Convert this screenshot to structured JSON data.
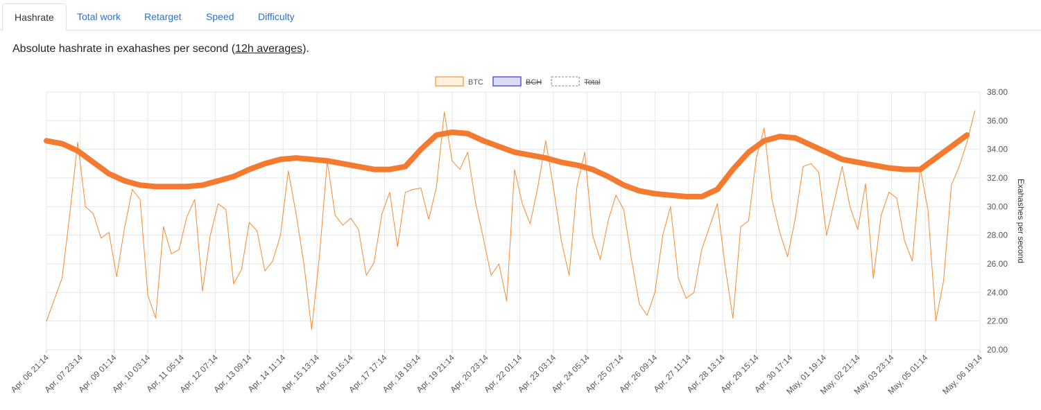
{
  "tabs": [
    "Hashrate",
    "Total work",
    "Retarget",
    "Speed",
    "Difficulty"
  ],
  "active_tab": 0,
  "description": {
    "before": "Absolute hashrate in exahashes per second (",
    "link": "12h averages",
    "after": ")."
  },
  "chart_data": {
    "type": "line",
    "y_label": "Exahashes per second",
    "legend": [
      {
        "name": "BTC",
        "color": "#f7a35c",
        "fill": "#fff1e0",
        "hidden": false,
        "dashed": false
      },
      {
        "name": "BCH",
        "color": "#5555dd",
        "fill": "#dcdcf8",
        "hidden": true,
        "dashed": false
      },
      {
        "name": "Total",
        "color": "#aaaaaa",
        "fill": "#ffffff",
        "hidden": true,
        "dashed": true
      }
    ],
    "xlim": [
      0,
      718
    ],
    "xticks": [
      {
        "value": 0,
        "label": "Apr, 06 21:14"
      },
      {
        "value": 26,
        "label": "Apr, 07 23:14"
      },
      {
        "value": 52,
        "label": "Apr, 09 01:14"
      },
      {
        "value": 78,
        "label": "Apr, 10 03:14"
      },
      {
        "value": 104,
        "label": "Apr, 11 05:14"
      },
      {
        "value": 130,
        "label": "Apr, 12 07:14"
      },
      {
        "value": 156,
        "label": "Apr, 13 09:14"
      },
      {
        "value": 182,
        "label": "Apr, 14 11:14"
      },
      {
        "value": 208,
        "label": "Apr, 15 13:14"
      },
      {
        "value": 234,
        "label": "Apr, 16 15:14"
      },
      {
        "value": 260,
        "label": "Apr, 17 17:14"
      },
      {
        "value": 286,
        "label": "Apr, 18 19:14"
      },
      {
        "value": 312,
        "label": "Apr, 19 21:14"
      },
      {
        "value": 338,
        "label": "Apr, 20 23:14"
      },
      {
        "value": 364,
        "label": "Apr, 22 01:14"
      },
      {
        "value": 390,
        "label": "Apr, 23 03:14"
      },
      {
        "value": 416,
        "label": "Apr, 24 05:14"
      },
      {
        "value": 442,
        "label": "Apr, 25 07:14"
      },
      {
        "value": 468,
        "label": "Apr, 26 09:14"
      },
      {
        "value": 494,
        "label": "Apr, 27 11:14"
      },
      {
        "value": 520,
        "label": "Apr, 28 13:14"
      },
      {
        "value": 546,
        "label": "Apr, 29 15:14"
      },
      {
        "value": 572,
        "label": "Apr, 30 17:14"
      },
      {
        "value": 598,
        "label": "May, 01 19:14"
      },
      {
        "value": 624,
        "label": "May, 02 21:14"
      },
      {
        "value": 650,
        "label": "May, 03 23:14"
      },
      {
        "value": 676,
        "label": "May, 05 01:14"
      },
      {
        "value": 718,
        "label": "May, 06 19:14"
      }
    ],
    "ylim": [
      20,
      38
    ],
    "yticks": [
      {
        "value": 20,
        "label": "20.00"
      },
      {
        "value": 22,
        "label": "22.00"
      },
      {
        "value": 24,
        "label": "24.00"
      },
      {
        "value": 26,
        "label": "26.00"
      },
      {
        "value": 28,
        "label": "28.00"
      },
      {
        "value": 30,
        "label": "30.00"
      },
      {
        "value": 32,
        "label": "32.00"
      },
      {
        "value": 34,
        "label": "34.00"
      },
      {
        "value": 36,
        "label": "36.00"
      },
      {
        "value": 38,
        "label": "38.00"
      }
    ],
    "grid": true,
    "series": [
      {
        "name": "BTC",
        "color": "#f7892e",
        "line_width": 1,
        "x": [
          0,
          6,
          12,
          18,
          24,
          30,
          36,
          42,
          48,
          54,
          60,
          66,
          72,
          78,
          84,
          90,
          96,
          102,
          108,
          114,
          120,
          126,
          132,
          138,
          144,
          150,
          156,
          162,
          168,
          174,
          180,
          186,
          192,
          198,
          204,
          210,
          216,
          222,
          228,
          234,
          240,
          246,
          252,
          258,
          264,
          270,
          276,
          282,
          288,
          294,
          300,
          306,
          312,
          318,
          324,
          330,
          336,
          342,
          348,
          354,
          360,
          366,
          372,
          378,
          384,
          390,
          396,
          402,
          408,
          414,
          420,
          426,
          432,
          438,
          444,
          450,
          456,
          462,
          468,
          474,
          480,
          486,
          492,
          498,
          504,
          510,
          516,
          522,
          528,
          534,
          540,
          546,
          552,
          558,
          564,
          570,
          576,
          582,
          588,
          594,
          600,
          606,
          612,
          618,
          624,
          630,
          636,
          642,
          648,
          654,
          660,
          666,
          672,
          678,
          684,
          690,
          696,
          702,
          708,
          714
        ],
        "values": [
          22.0,
          23.5,
          25.0,
          29.5,
          34.5,
          30.0,
          29.5,
          27.8,
          28.2,
          25.1,
          28.5,
          31.2,
          30.5,
          23.8,
          22.2,
          28.6,
          26.7,
          27.0,
          29.3,
          30.5,
          24.1,
          28.0,
          30.2,
          29.8,
          24.6,
          25.6,
          28.9,
          28.3,
          25.5,
          26.2,
          28.0,
          32.5,
          29.5,
          26.0,
          21.4,
          26.6,
          33.2,
          29.4,
          28.7,
          29.2,
          28.4,
          25.2,
          26.1,
          29.5,
          31.0,
          27.2,
          31.0,
          31.2,
          31.3,
          29.1,
          31.4,
          36.6,
          33.2,
          32.6,
          33.8,
          30.3,
          27.8,
          25.2,
          26.0,
          23.4,
          32.6,
          30.2,
          28.8,
          31.4,
          34.6,
          31.3,
          27.6,
          25.2,
          31.4,
          33.8,
          28.0,
          26.3,
          29.0,
          30.8,
          29.8,
          26.3,
          23.2,
          22.4,
          24.0,
          28.0,
          30.0,
          25.0,
          23.6,
          24.0,
          27.0,
          28.6,
          30.2,
          25.8,
          22.2,
          28.6,
          29.0,
          33.4,
          35.5,
          30.5,
          28.2,
          26.5,
          29.2,
          32.8,
          33.0,
          32.4,
          28.0,
          30.4,
          32.8,
          30.0,
          28.4,
          31.6,
          25.0,
          29.4,
          31.0,
          30.6,
          27.6,
          26.2,
          32.7,
          29.8,
          22.0,
          24.8,
          31.5,
          32.8,
          34.5,
          36.7
        ]
      },
      {
        "color": "#f47a30",
        "line_width": 8,
        "x": [
          0,
          12,
          24,
          36,
          48,
          60,
          72,
          84,
          96,
          108,
          120,
          132,
          144,
          156,
          168,
          180,
          192,
          204,
          216,
          228,
          240,
          252,
          264,
          276,
          288,
          300,
          312,
          324,
          336,
          348,
          360,
          372,
          384,
          396,
          408,
          420,
          432,
          444,
          456,
          468,
          480,
          492,
          504,
          516,
          528,
          540,
          552,
          564,
          576,
          588,
          600,
          612,
          624,
          636,
          648,
          660,
          672,
          684,
          696,
          708
        ],
        "values": [
          34.6,
          34.4,
          33.9,
          33.1,
          32.3,
          31.8,
          31.5,
          31.4,
          31.4,
          31.4,
          31.5,
          31.8,
          32.1,
          32.6,
          33.0,
          33.3,
          33.4,
          33.3,
          33.2,
          33.0,
          32.8,
          32.6,
          32.6,
          32.8,
          34.0,
          35.0,
          35.2,
          35.1,
          34.6,
          34.2,
          33.8,
          33.6,
          33.4,
          33.1,
          32.9,
          32.6,
          32.1,
          31.5,
          31.1,
          30.9,
          30.8,
          30.7,
          30.7,
          31.2,
          32.6,
          33.8,
          34.6,
          34.9,
          34.8,
          34.3,
          33.8,
          33.3,
          33.1,
          32.9,
          32.7,
          32.6,
          32.6,
          33.4,
          34.2,
          35.0
        ]
      }
    ]
  }
}
